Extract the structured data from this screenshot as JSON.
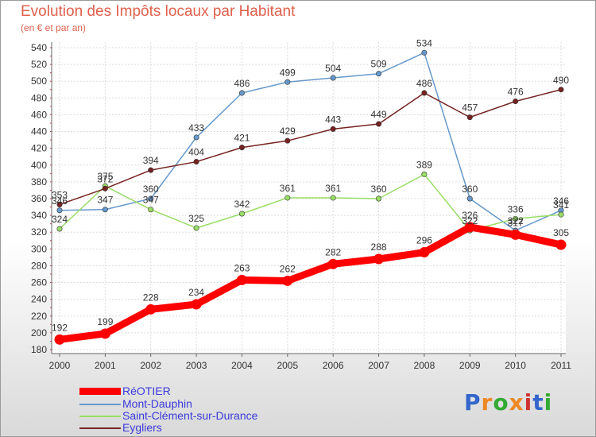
{
  "chart_data": {
    "type": "line",
    "title": "Evolution des Impôts locaux par Habitant",
    "subtitle": "(en € et par an)",
    "xlabel": "",
    "ylabel": "",
    "categories": [
      "2000",
      "2001",
      "2002",
      "2003",
      "2004",
      "2005",
      "2006",
      "2007",
      "2008",
      "2009",
      "2010",
      "2011"
    ],
    "ylim": [
      180,
      540
    ],
    "yticks": [
      180,
      200,
      220,
      240,
      260,
      280,
      300,
      320,
      340,
      360,
      380,
      400,
      420,
      440,
      460,
      480,
      500,
      520,
      540
    ],
    "series": [
      {
        "name": "RéOTIER",
        "color": "#ff0000",
        "values": [
          192,
          199,
          228,
          234,
          263,
          262,
          282,
          288,
          296,
          326,
          317,
          305
        ]
      },
      {
        "name": "Mont-Dauphin",
        "color": "#6699cc",
        "values": [
          346,
          347,
          360,
          433,
          486,
          499,
          504,
          509,
          534,
          360,
          322,
          346
        ]
      },
      {
        "name": "Saint-Clément-sur-Durance",
        "color": "#99dd66",
        "values": [
          324,
          375,
          347,
          325,
          342,
          361,
          361,
          360,
          389,
          322,
          336,
          341
        ]
      },
      {
        "name": "Eygliers",
        "color": "#772222",
        "values": [
          353,
          372,
          394,
          404,
          421,
          429,
          443,
          449,
          486,
          457,
          476,
          490
        ]
      }
    ]
  },
  "brand": {
    "text": "Proxiti",
    "colors": [
      "#3366cc",
      "#ee8822",
      "#33aa33",
      "#ee8822",
      "#cc3333",
      "#3366cc",
      "#33aa33"
    ]
  }
}
